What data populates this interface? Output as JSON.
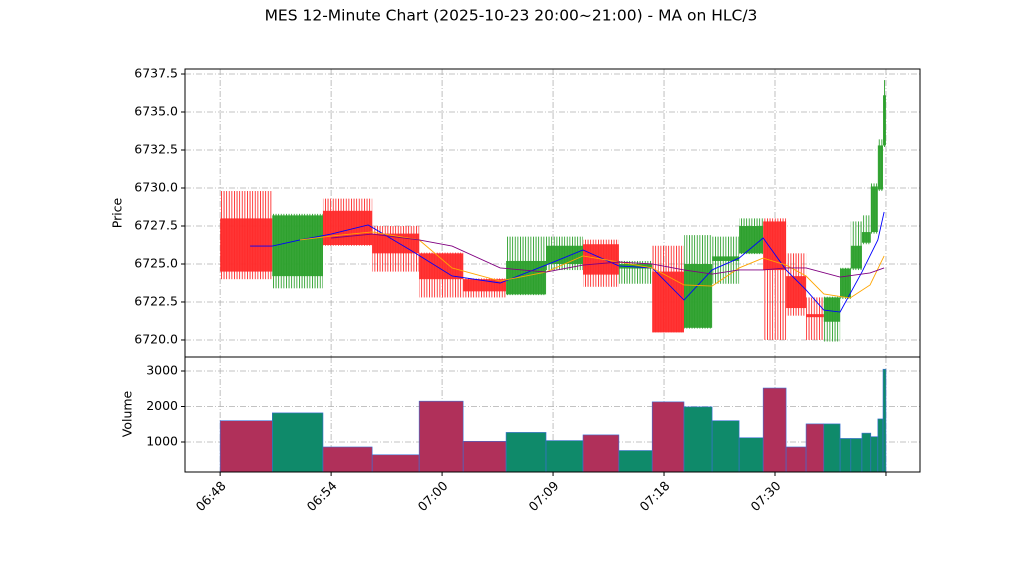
{
  "chart_data": {
    "type": "candlestick",
    "title": "MES 12-Minute Chart (2025-10-23 20:00~21:00) - MA on HLC/3",
    "ylabel": "Price",
    "volume_label": "Volume",
    "up_color": "#2ca02c",
    "down_color": "#ff2a2a",
    "volume_up_color": "#0f8a6a",
    "volume_down_color": "#b0305a",
    "grid": true,
    "xlim": [
      -9.5,
      189.2
    ],
    "xticks": [
      {
        "value": 0,
        "label": "06:48"
      },
      {
        "value": 30,
        "label": "06:54"
      },
      {
        "value": 60,
        "label": "07:00"
      },
      {
        "value": 90,
        "label": "07:09"
      },
      {
        "value": 120,
        "label": "07:18"
      },
      {
        "value": 150,
        "label": "07:30"
      },
      {
        "value": 180,
        "label": null
      }
    ],
    "ylim": [
      6718.88,
      6737.83
    ],
    "yticks": [
      {
        "value": 6720,
        "label": "6720.0"
      },
      {
        "value": 6722.5,
        "label": "6722.5"
      },
      {
        "value": 6725,
        "label": "6725.0"
      },
      {
        "value": 6727.5,
        "label": "6727.5"
      },
      {
        "value": 6730,
        "label": "6730.0"
      },
      {
        "value": 6732.5,
        "label": "6732.5"
      },
      {
        "value": 6735,
        "label": "6735.0"
      },
      {
        "value": 6737.5,
        "label": "6737.5"
      }
    ],
    "y2lim": [
      155,
      3394
    ],
    "y2ticks": [
      1000,
      2000,
      3000
    ],
    "candles": [
      {
        "x0": 0,
        "x1": 14.1,
        "open": 6728.0,
        "high": 6729.8,
        "low": 6724.0,
        "close": 6724.5,
        "volume": 1600
      },
      {
        "x0": 14.1,
        "x1": 27.8,
        "open": 6724.2,
        "high": 6728.3,
        "low": 6723.4,
        "close": 6728.2,
        "volume": 1820
      },
      {
        "x0": 27.8,
        "x1": 41.1,
        "open": 6728.5,
        "high": 6729.3,
        "low": 6726.2,
        "close": 6726.25,
        "volume": 860
      },
      {
        "x0": 41.1,
        "x1": 53.8,
        "open": 6727.0,
        "high": 6727.5,
        "low": 6724.5,
        "close": 6725.7,
        "volume": 640
      },
      {
        "x0": 53.8,
        "x1": 65.7,
        "open": 6725.7,
        "high": 6725.75,
        "low": 6722.8,
        "close": 6724.0,
        "volume": 2150
      },
      {
        "x0": 65.7,
        "x1": 77.3,
        "open": 6724.0,
        "high": 6724.05,
        "low": 6722.8,
        "close": 6723.2,
        "volume": 1020
      },
      {
        "x0": 77.3,
        "x1": 88.1,
        "open": 6723.0,
        "high": 6726.8,
        "low": 6722.95,
        "close": 6725.2,
        "volume": 1270
      },
      {
        "x0": 88.1,
        "x1": 98.1,
        "open": 6725.0,
        "high": 6726.8,
        "low": 6724.6,
        "close": 6726.2,
        "volume": 1040
      },
      {
        "x0": 98.1,
        "x1": 107.8,
        "open": 6726.3,
        "high": 6726.6,
        "low": 6723.5,
        "close": 6724.3,
        "volume": 1200
      },
      {
        "x0": 107.8,
        "x1": 116.8,
        "open": 6724.7,
        "high": 6725.2,
        "low": 6723.7,
        "close": 6725.0,
        "volume": 760
      },
      {
        "x0": 116.8,
        "x1": 125.4,
        "open": 6724.5,
        "high": 6726.2,
        "low": 6720.5,
        "close": 6720.5,
        "volume": 2130
      },
      {
        "x0": 125.4,
        "x1": 133,
        "open": 6720.8,
        "high": 6726.9,
        "low": 6720.75,
        "close": 6725.0,
        "volume": 1990
      },
      {
        "x0": 133,
        "x1": 140.3,
        "open": 6725.2,
        "high": 6726.8,
        "low": 6723.7,
        "close": 6725.5,
        "volume": 1600
      },
      {
        "x0": 140.3,
        "x1": 146.8,
        "open": 6725.7,
        "high": 6728.0,
        "low": 6725.65,
        "close": 6727.5,
        "volume": 1120
      },
      {
        "x0": 146.8,
        "x1": 153,
        "open": 6727.8,
        "high": 6728.0,
        "low": 6720.0,
        "close": 6724.6,
        "volume": 2520
      },
      {
        "x0": 153,
        "x1": 158.4,
        "open": 6724.2,
        "high": 6725.7,
        "low": 6721.6,
        "close": 6722.1,
        "volume": 860
      },
      {
        "x0": 158.4,
        "x1": 163.2,
        "open": 6721.7,
        "high": 6722.8,
        "low": 6720.0,
        "close": 6721.5,
        "volume": 1510
      },
      {
        "x0": 163.2,
        "x1": 167.6,
        "open": 6721.2,
        "high": 6722.85,
        "low": 6719.9,
        "close": 6722.8,
        "volume": 1510
      },
      {
        "x0": 167.6,
        "x1": 170.5,
        "open": 6722.8,
        "high": 6724.75,
        "low": 6722.7,
        "close": 6724.7,
        "volume": 1100
      },
      {
        "x0": 170.5,
        "x1": 173.5,
        "open": 6724.7,
        "high": 6727.8,
        "low": 6724.6,
        "close": 6726.2,
        "volume": 1100
      },
      {
        "x0": 173.5,
        "x1": 175.9,
        "open": 6726.4,
        "high": 6728.2,
        "low": 6726.3,
        "close": 6727.1,
        "volume": 1250
      },
      {
        "x0": 175.9,
        "x1": 177.8,
        "open": 6727.1,
        "high": 6730.3,
        "low": 6727.0,
        "close": 6730.1,
        "volume": 1150
      },
      {
        "x0": 177.8,
        "x1": 179.2,
        "open": 6729.9,
        "high": 6733.2,
        "low": 6729.8,
        "close": 6732.8,
        "volume": 1650
      },
      {
        "x0": 179.2,
        "x1": 180,
        "open": 6732.8,
        "high": 6737.1,
        "low": 6732.7,
        "close": 6736.1,
        "volume": 3050
      }
    ],
    "series": [
      {
        "color": "#0000ff",
        "x": [
          8.1,
          14.1,
          21.6,
          30,
          40,
          51.4,
          62.7,
          75.7,
          88.1,
          98.1,
          107.8,
          116.8,
          125.4,
          133,
          140.3,
          146.8,
          153,
          158.4,
          163.2,
          167.6,
          173.5,
          177.8,
          179.5
        ],
        "values": [
          6726.18,
          6726.18,
          6726.58,
          6726.97,
          6727.57,
          6725.92,
          6724.21,
          6723.75,
          6724.93,
          6725.92,
          6724.87,
          6724.74,
          6722.63,
          6724.61,
          6725.39,
          6726.71,
          6724.61,
          6723.29,
          6721.97,
          6721.84,
          6724.47,
          6726.58,
          6728.42
        ]
      },
      {
        "color": "#ffa500",
        "x": [
          21.6,
          30,
          41.1,
          53.8,
          62.7,
          75.7,
          88.1,
          98.1,
          107.8,
          116.8,
          125.4,
          133,
          140.3,
          146.8,
          153,
          158.4,
          163.2,
          170.3,
          175.7,
          179.5
        ],
        "values": [
          6726.58,
          6726.84,
          6727.11,
          6726.58,
          6724.74,
          6723.88,
          6724.47,
          6725.53,
          6725.13,
          6724.74,
          6723.62,
          6723.55,
          6724.74,
          6725.39,
          6724.93,
          6724.21,
          6723.03,
          6722.76,
          6723.62,
          6725.53
        ]
      },
      {
        "color": "#800080",
        "x": [
          30,
          41.1,
          53.8,
          62.7,
          75.7,
          88.1,
          98.1,
          107.8,
          116.8,
          125.4,
          133,
          140.3,
          146.8,
          153,
          158.4,
          167.6,
          175.7,
          179.5
        ],
        "values": [
          6726.71,
          6726.97,
          6726.58,
          6726.18,
          6724.74,
          6724.47,
          6724.93,
          6725.13,
          6725.0,
          6724.61,
          6724.34,
          6724.61,
          6724.61,
          6724.74,
          6724.74,
          6724.14,
          6724.41,
          6724.74
        ]
      }
    ]
  }
}
